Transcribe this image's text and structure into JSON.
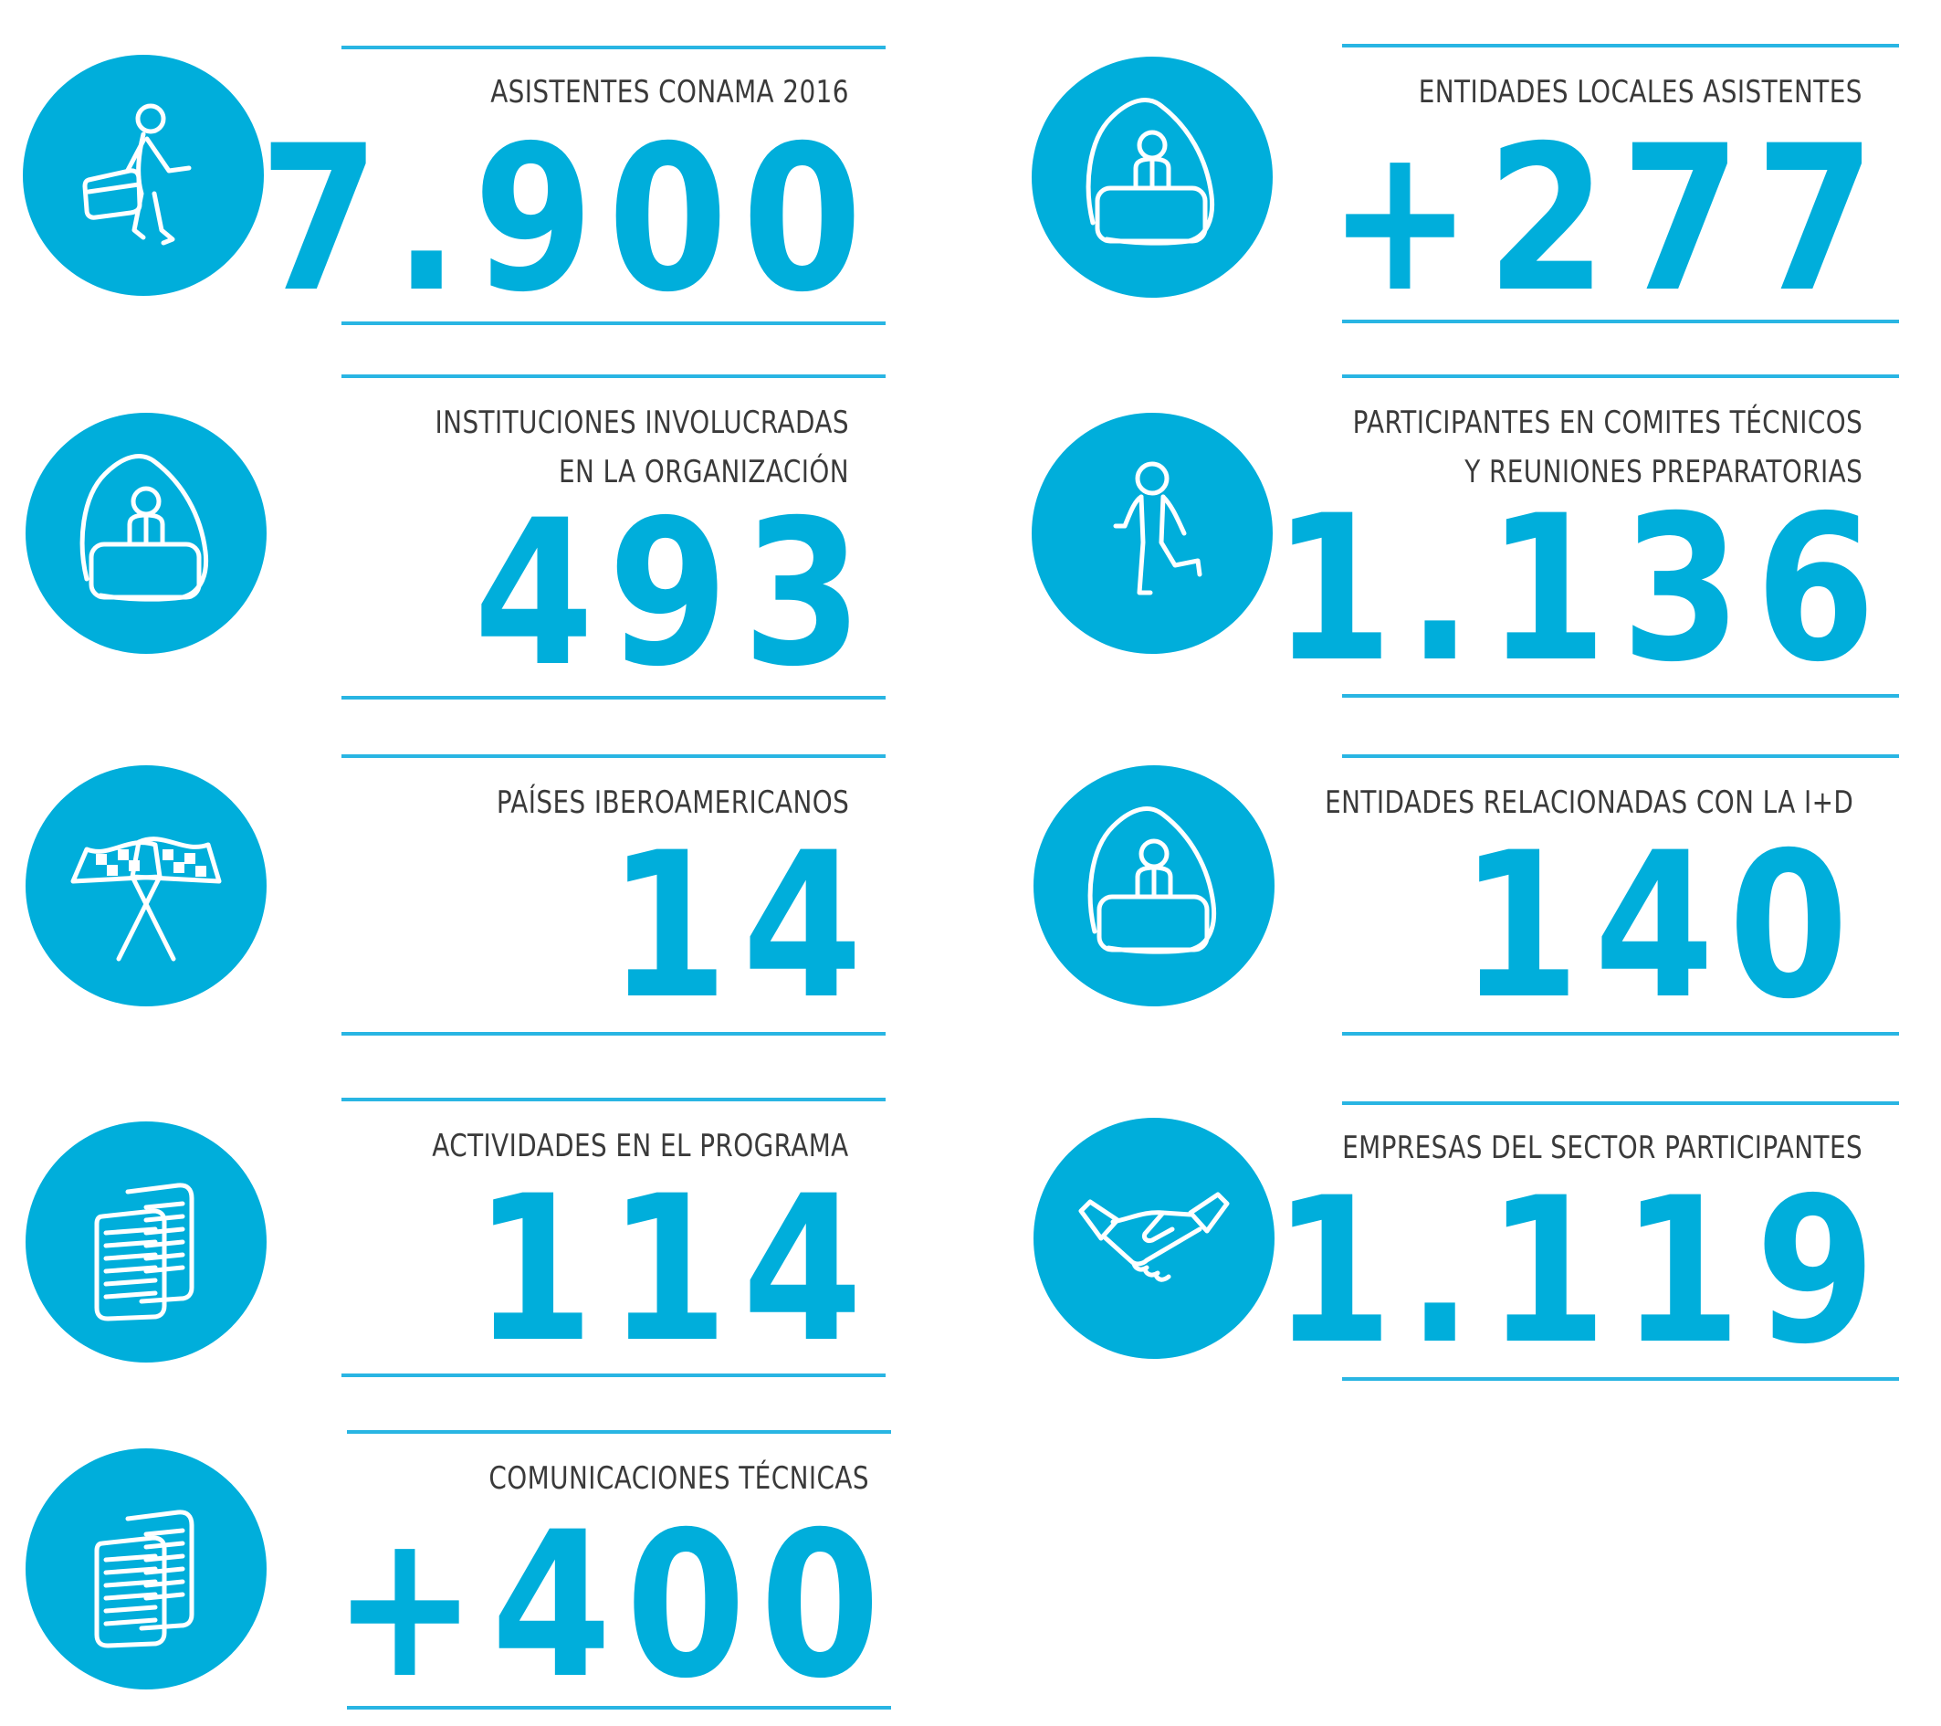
{
  "stats": [
    {
      "label": [
        "ASISTENTES CONAMA 2016"
      ],
      "value": "7.900",
      "icon": "person-with-briefcase-icon"
    },
    {
      "label": [
        "ENTIDADES LOCALES ASISTENTES"
      ],
      "value": "+277",
      "icon": "kiosk-stand-icon"
    },
    {
      "label": [
        "INSTITUCIONES INVOLUCRADAS",
        "EN LA ORGANIZACIÓN"
      ],
      "value": "493",
      "icon": "kiosk-stand-icon"
    },
    {
      "label": [
        "PARTICIPANTES  EN COMITES TÉCNICOS",
        "Y REUNIONES PREPARATORIAS"
      ],
      "value": "1.136",
      "icon": "walking-person-icon"
    },
    {
      "label": [
        "PAÍSES IBEROAMERICANOS"
      ],
      "value": "14",
      "icon": "crossed-flags-icon"
    },
    {
      "label": [
        "ENTIDADES RELACIONADAS CON LA I+D"
      ],
      "value": "140",
      "icon": "kiosk-stand-icon"
    },
    {
      "label": [
        "ACTIVIDADES EN EL PROGRAMA"
      ],
      "value": "114",
      "icon": "documents-icon"
    },
    {
      "label": [
        "EMPRESAS DEL SECTOR PARTICIPANTES"
      ],
      "value": "1.119",
      "icon": "handshake-icon"
    },
    {
      "label": [
        "COMUNICACIONES TÉCNICAS"
      ],
      "value": "+400",
      "icon": "documents-icon"
    }
  ],
  "colors": {
    "accent": "#00aedb",
    "rule": "#29b5e3",
    "label_text": "#3a3a3a"
  }
}
